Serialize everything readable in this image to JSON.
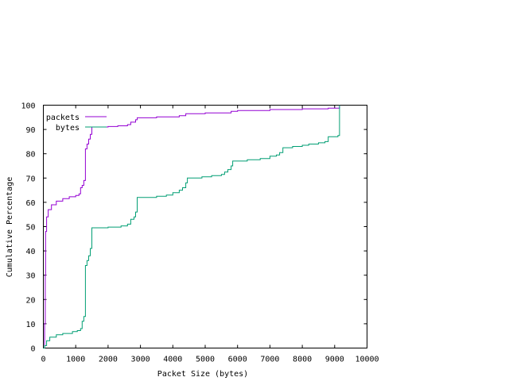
{
  "chart_data": {
    "type": "line",
    "title": "",
    "xlabel": "Packet Size (bytes)",
    "ylabel": "Cumulative Percentage",
    "xlim": [
      0,
      10000
    ],
    "ylim": [
      0,
      100
    ],
    "x_ticks": [
      0,
      1000,
      2000,
      3000,
      4000,
      5000,
      6000,
      7000,
      8000,
      9000,
      10000
    ],
    "y_ticks": [
      0,
      10,
      20,
      30,
      40,
      50,
      60,
      70,
      80,
      90,
      100
    ],
    "grid": false,
    "legend_position": "top-left",
    "series": [
      {
        "name": "packets",
        "color": "#9400d3",
        "step": true,
        "points": [
          [
            0,
            0
          ],
          [
            40,
            10
          ],
          [
            60,
            30
          ],
          [
            70,
            48
          ],
          [
            100,
            54
          ],
          [
            150,
            57
          ],
          [
            250,
            59
          ],
          [
            400,
            60.5
          ],
          [
            600,
            61.5
          ],
          [
            800,
            62.3
          ],
          [
            1000,
            62.8
          ],
          [
            1100,
            63.5
          ],
          [
            1150,
            66
          ],
          [
            1200,
            67
          ],
          [
            1250,
            69
          ],
          [
            1300,
            82
          ],
          [
            1350,
            84
          ],
          [
            1400,
            86
          ],
          [
            1450,
            88
          ],
          [
            1500,
            91
          ],
          [
            2000,
            91.2
          ],
          [
            2300,
            91.5
          ],
          [
            2600,
            92
          ],
          [
            2700,
            93
          ],
          [
            2850,
            94
          ],
          [
            2900,
            94.8
          ],
          [
            3500,
            95.2
          ],
          [
            4200,
            95.7
          ],
          [
            4400,
            96.5
          ],
          [
            5000,
            96.8
          ],
          [
            5800,
            97.5
          ],
          [
            6000,
            97.8
          ],
          [
            7000,
            98.2
          ],
          [
            8000,
            98.5
          ],
          [
            8800,
            98.8
          ],
          [
            9150,
            100
          ]
        ]
      },
      {
        "name": "bytes",
        "color": "#009e73",
        "step": true,
        "points": [
          [
            0,
            0
          ],
          [
            40,
            1
          ],
          [
            100,
            3
          ],
          [
            200,
            4.5
          ],
          [
            400,
            5.5
          ],
          [
            600,
            6
          ],
          [
            900,
            6.8
          ],
          [
            1050,
            7.2
          ],
          [
            1150,
            8
          ],
          [
            1200,
            11
          ],
          [
            1250,
            13
          ],
          [
            1300,
            34
          ],
          [
            1350,
            36
          ],
          [
            1400,
            38
          ],
          [
            1450,
            41
          ],
          [
            1500,
            49.5
          ],
          [
            2000,
            49.8
          ],
          [
            2400,
            50.3
          ],
          [
            2600,
            51
          ],
          [
            2700,
            53
          ],
          [
            2800,
            54
          ],
          [
            2850,
            56
          ],
          [
            2900,
            62
          ],
          [
            3500,
            62.5
          ],
          [
            3800,
            63
          ],
          [
            4000,
            64
          ],
          [
            4200,
            65
          ],
          [
            4300,
            66
          ],
          [
            4400,
            68
          ],
          [
            4450,
            70
          ],
          [
            4900,
            70.5
          ],
          [
            5200,
            71
          ],
          [
            5500,
            71.5
          ],
          [
            5600,
            72.5
          ],
          [
            5700,
            73.5
          ],
          [
            5800,
            75
          ],
          [
            5850,
            77
          ],
          [
            6300,
            77.5
          ],
          [
            6700,
            78
          ],
          [
            7000,
            79
          ],
          [
            7200,
            79.5
          ],
          [
            7300,
            80.5
          ],
          [
            7400,
            82.5
          ],
          [
            7700,
            83
          ],
          [
            8000,
            83.5
          ],
          [
            8200,
            84
          ],
          [
            8500,
            84.5
          ],
          [
            8700,
            85
          ],
          [
            8800,
            87
          ],
          [
            9100,
            87.5
          ],
          [
            9150,
            100
          ]
        ]
      }
    ]
  }
}
